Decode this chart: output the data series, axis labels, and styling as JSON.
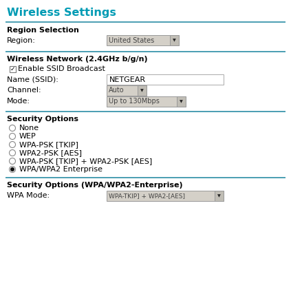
{
  "title": "Wireless Settings",
  "title_color": "#009BB4",
  "bg_color": "#FFFFFF",
  "section_line_color": "#2B8EA6",
  "text_color": "#000000",
  "bold_color": "#000000",
  "section1_title": "Region Selection",
  "region_label": "Region:",
  "region_value": "United States",
  "section2_title": "Wireless Network (2.4GHz b/g/n)",
  "checkbox_label": "Enable SSID Broadcast",
  "ssid_label": "Name (SSID):",
  "ssid_value": "NETGEAR",
  "channel_label": "Channel:",
  "channel_value": "Auto",
  "mode_label": "Mode:",
  "mode_value": "Up to 130Mbps",
  "section3_title": "Security Options",
  "radio_options": [
    "None",
    "WEP",
    "WPA-PSK [TKIP]",
    "WPA2-PSK [AES]",
    "WPA-PSK [TKIP] + WPA2-PSK [AES]",
    "WPA/WPA2 Enterprise"
  ],
  "selected_radio": 5,
  "section4_title": "Security Options (WPA/WPA2-Enterprise)",
  "wpa_label": "WPA Mode:",
  "wpa_value": "WPA-TKIP] + WPA2-[AES]"
}
